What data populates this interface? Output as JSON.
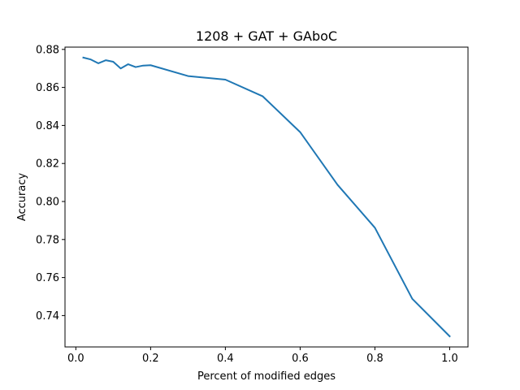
{
  "chart_data": {
    "type": "line",
    "title": "1208 + GAT + GAboC",
    "xlabel": "Percent of modified edges",
    "ylabel": "Accuracy",
    "xlim": [
      -0.029,
      1.049
    ],
    "ylim": [
      0.7235,
      0.8812
    ],
    "xticks": [
      0.0,
      0.2,
      0.4,
      0.6,
      0.8,
      1.0
    ],
    "xtick_labels": [
      "0.0",
      "0.2",
      "0.4",
      "0.6",
      "0.8",
      "1.0"
    ],
    "yticks": [
      0.74,
      0.76,
      0.78,
      0.8,
      0.82,
      0.84,
      0.86,
      0.88
    ],
    "ytick_labels": [
      "0.74",
      "0.76",
      "0.78",
      "0.80",
      "0.82",
      "0.84",
      "0.86",
      "0.88"
    ],
    "grid": false,
    "legend": "none",
    "series": [
      {
        "color": "#1f77b4",
        "x": [
          0.02,
          0.04,
          0.06,
          0.08,
          0.1,
          0.12,
          0.14,
          0.16,
          0.18,
          0.2,
          0.3,
          0.4,
          0.5,
          0.6,
          0.7,
          0.8,
          0.9,
          1.0
        ],
        "y": [
          0.8757,
          0.8747,
          0.8727,
          0.8743,
          0.8735,
          0.87,
          0.8722,
          0.8707,
          0.8715,
          0.8717,
          0.866,
          0.8641,
          0.8553,
          0.8365,
          0.8088,
          0.7862,
          0.7488,
          0.7291
        ]
      }
    ]
  }
}
